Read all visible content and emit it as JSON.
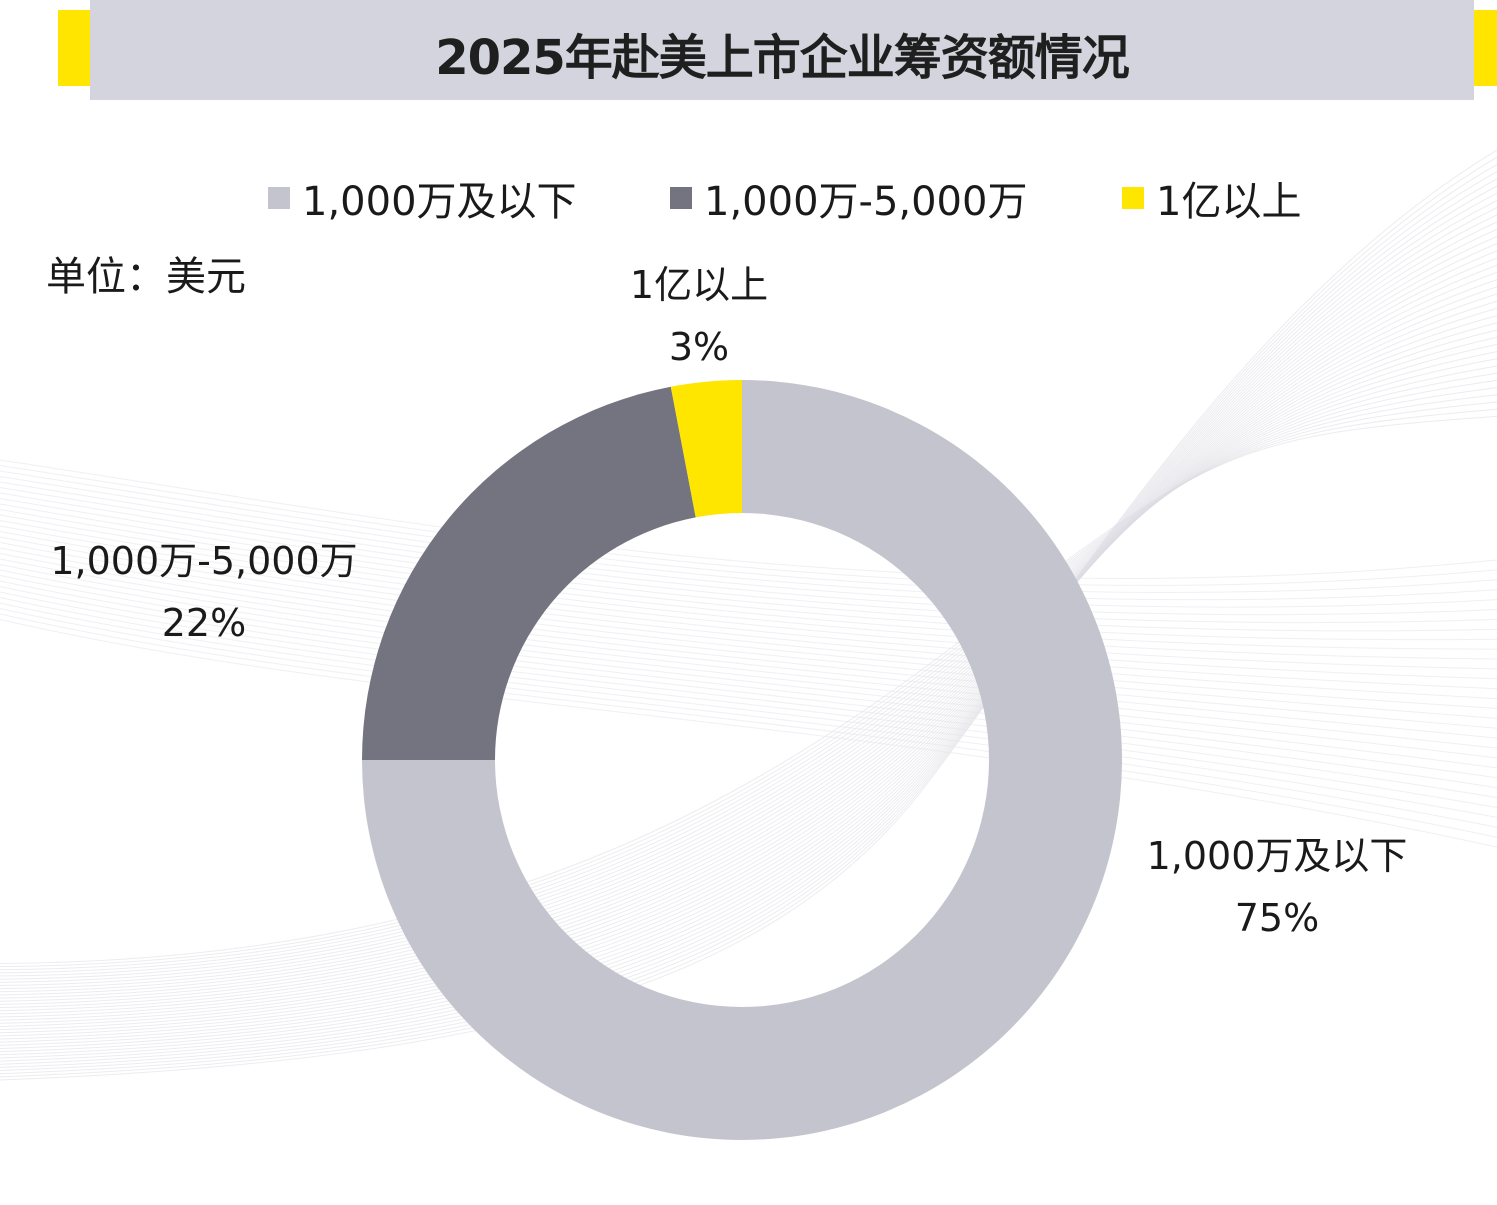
{
  "colors": {
    "accent_yellow": "#ffe500",
    "title_bg": "#d4d4de",
    "light_gray": "#c4c4ce",
    "dark_gray": "#747480",
    "yellow": "#ffe600"
  },
  "header": {
    "title": "2025年赴美上市企业筹资额情况"
  },
  "unit": "单位：美元",
  "chart_data": {
    "type": "pie",
    "donut": true,
    "title": "2025年赴美上市企业筹资额情况",
    "unit": "单位：美元",
    "legend_position": "top",
    "series": [
      {
        "name": "1,000万及以下",
        "value": 75,
        "label": "75%",
        "color": "#c4c4ce"
      },
      {
        "name": "1,000万-5,000万",
        "value": 22,
        "label": "22%",
        "color": "#747480"
      },
      {
        "name": "1亿以上",
        "value": 3,
        "label": "3%",
        "color": "#ffe600"
      }
    ]
  }
}
